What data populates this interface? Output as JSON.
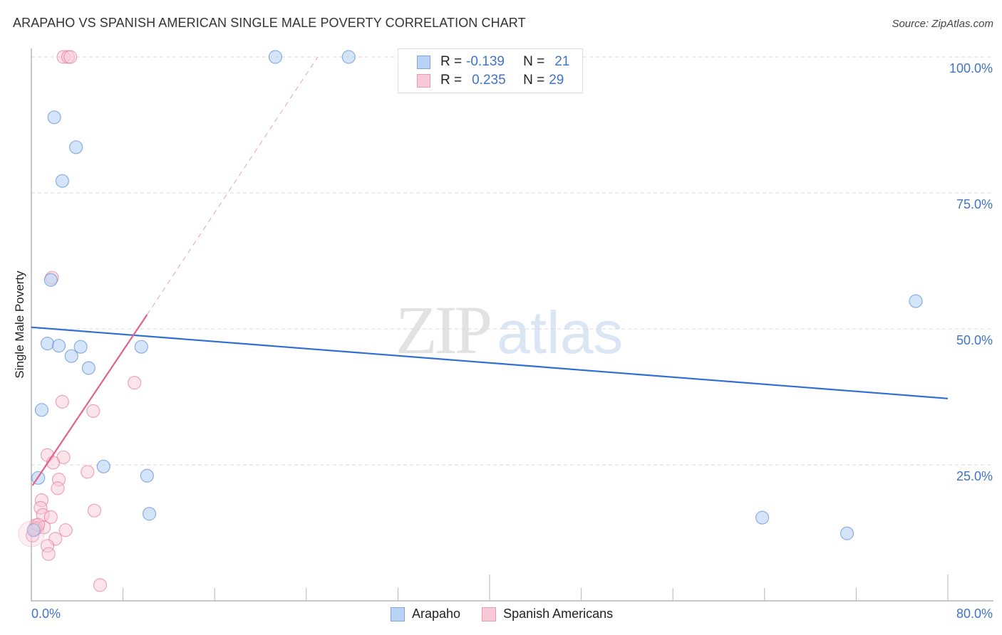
{
  "header": {
    "title": "ARAPAHO VS SPANISH AMERICAN SINGLE MALE POVERTY CORRELATION CHART",
    "source": "Source: ZipAtlas.com"
  },
  "watermark": {
    "zip": "ZIP",
    "atlas": "atlas"
  },
  "legend": {
    "rows": [
      {
        "r_label": "R =",
        "r_value": "-0.139",
        "n_label": "N =",
        "n_value": "21",
        "color": "#b8d3f5",
        "border": "#7ea6e0"
      },
      {
        "r_label": "R =",
        "r_value": "0.235",
        "n_label": "N =",
        "n_value": "29",
        "color": "#f9c9d7",
        "border": "#ec9ab2"
      }
    ]
  },
  "bottom_legend": {
    "items": [
      {
        "label": "Arapaho",
        "color": "#b8d3f5",
        "border": "#7ea6e0"
      },
      {
        "label": "Spanish Americans",
        "color": "#f9c9d7",
        "border": "#ec9ab2"
      }
    ]
  },
  "axes": {
    "ylabel": "Single Male Poverty",
    "yticks": [
      "100.0%",
      "75.0%",
      "50.0%",
      "25.0%"
    ],
    "xticks": [
      "0.0%",
      "80.0%"
    ]
  },
  "chart_data": {
    "type": "scatter",
    "title": "ARAPAHO VS SPANISH AMERICAN SINGLE MALE POVERTY CORRELATION CHART",
    "xlabel": "",
    "ylabel": "Single Male Poverty",
    "xlim": [
      0,
      80
    ],
    "ylim": [
      0,
      100
    ],
    "x_tick_labels": [
      "0.0%",
      "80.0%"
    ],
    "y_tick_labels": [
      "25.0%",
      "50.0%",
      "75.0%",
      "100.0%"
    ],
    "grid": true,
    "legend_position": "bottom",
    "series": [
      {
        "name": "Arapaho",
        "color": "#3f74c9",
        "fill": "#b8d3f5",
        "R": -0.139,
        "N": 21,
        "points": [
          [
            21.3,
            100.0
          ],
          [
            27.7,
            100.0
          ],
          [
            2.0,
            88.9
          ],
          [
            3.9,
            83.4
          ],
          [
            2.7,
            77.2
          ],
          [
            1.7,
            59.0
          ],
          [
            77.2,
            55.1
          ],
          [
            1.4,
            47.3
          ],
          [
            2.4,
            46.9
          ],
          [
            4.3,
            46.7
          ],
          [
            9.6,
            46.7
          ],
          [
            3.5,
            45.0
          ],
          [
            5.0,
            42.8
          ],
          [
            0.9,
            35.1
          ],
          [
            6.3,
            24.7
          ],
          [
            0.6,
            22.6
          ],
          [
            10.1,
            23.0
          ],
          [
            10.3,
            16.0
          ],
          [
            63.8,
            15.3
          ],
          [
            71.2,
            12.4
          ],
          [
            0.2,
            13.0
          ]
        ],
        "trend_line": {
          "x": [
            0,
            80
          ],
          "y": [
            50.3,
            37.2
          ],
          "style": "solid"
        }
      },
      {
        "name": "Spanish Americans",
        "color": "#e0628c",
        "fill": "#f9c9d7",
        "R": 0.235,
        "N": 29,
        "points": [
          [
            2.8,
            100.0
          ],
          [
            3.2,
            100.0
          ],
          [
            3.4,
            100.0
          ],
          [
            1.8,
            59.4
          ],
          [
            9.0,
            40.1
          ],
          [
            2.7,
            36.6
          ],
          [
            5.4,
            34.9
          ],
          [
            1.4,
            26.8
          ],
          [
            2.8,
            26.4
          ],
          [
            1.9,
            25.4
          ],
          [
            4.9,
            23.7
          ],
          [
            2.4,
            22.3
          ],
          [
            2.3,
            20.7
          ],
          [
            0.9,
            18.5
          ],
          [
            0.8,
            17.1
          ],
          [
            5.5,
            16.6
          ],
          [
            1.0,
            15.8
          ],
          [
            1.7,
            15.4
          ],
          [
            0.4,
            13.9
          ],
          [
            0.5,
            13.4
          ],
          [
            1.1,
            13.5
          ],
          [
            3.0,
            13.0
          ],
          [
            0.1,
            12.0
          ],
          [
            2.1,
            11.4
          ],
          [
            1.4,
            10.1
          ],
          [
            1.5,
            8.6
          ],
          [
            6.0,
            2.9
          ],
          [
            0.3,
            13.2
          ],
          [
            0.6,
            14.0
          ]
        ],
        "trend_line": {
          "x": [
            0.1,
            10.1
          ],
          "y": [
            21.2,
            52.6
          ],
          "style": "solid",
          "extension": {
            "x": [
              10.1,
              25.0
            ],
            "y": [
              52.6,
              100.0
            ],
            "style": "dashed"
          }
        }
      }
    ]
  }
}
